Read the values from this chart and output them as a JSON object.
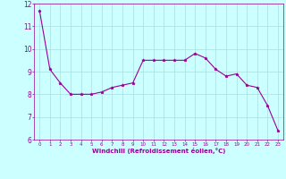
{
  "x": [
    0,
    1,
    2,
    3,
    4,
    5,
    6,
    7,
    8,
    9,
    10,
    11,
    12,
    13,
    14,
    15,
    16,
    17,
    18,
    19,
    20,
    21,
    22,
    23
  ],
  "y": [
    11.7,
    9.1,
    8.5,
    8.0,
    8.0,
    8.0,
    8.1,
    8.3,
    8.4,
    8.5,
    9.5,
    9.5,
    9.5,
    9.5,
    9.5,
    9.8,
    9.6,
    9.1,
    8.8,
    8.9,
    8.4,
    8.3,
    7.5,
    6.4
  ],
  "line_color": "#990099",
  "marker": "*",
  "marker_size": 2.5,
  "bg_color": "#ccffff",
  "grid_color": "#aadddd",
  "xlabel": "Windchill (Refroidissement éolien,°C)",
  "xlabel_color": "#990099",
  "tick_color": "#990099",
  "xlim": [
    -0.5,
    23.5
  ],
  "ylim": [
    6,
    12
  ],
  "yticks": [
    6,
    7,
    8,
    9,
    10,
    11,
    12
  ],
  "xticks": [
    0,
    1,
    2,
    3,
    4,
    5,
    6,
    7,
    8,
    9,
    10,
    11,
    12,
    13,
    14,
    15,
    16,
    17,
    18,
    19,
    20,
    21,
    22,
    23
  ]
}
